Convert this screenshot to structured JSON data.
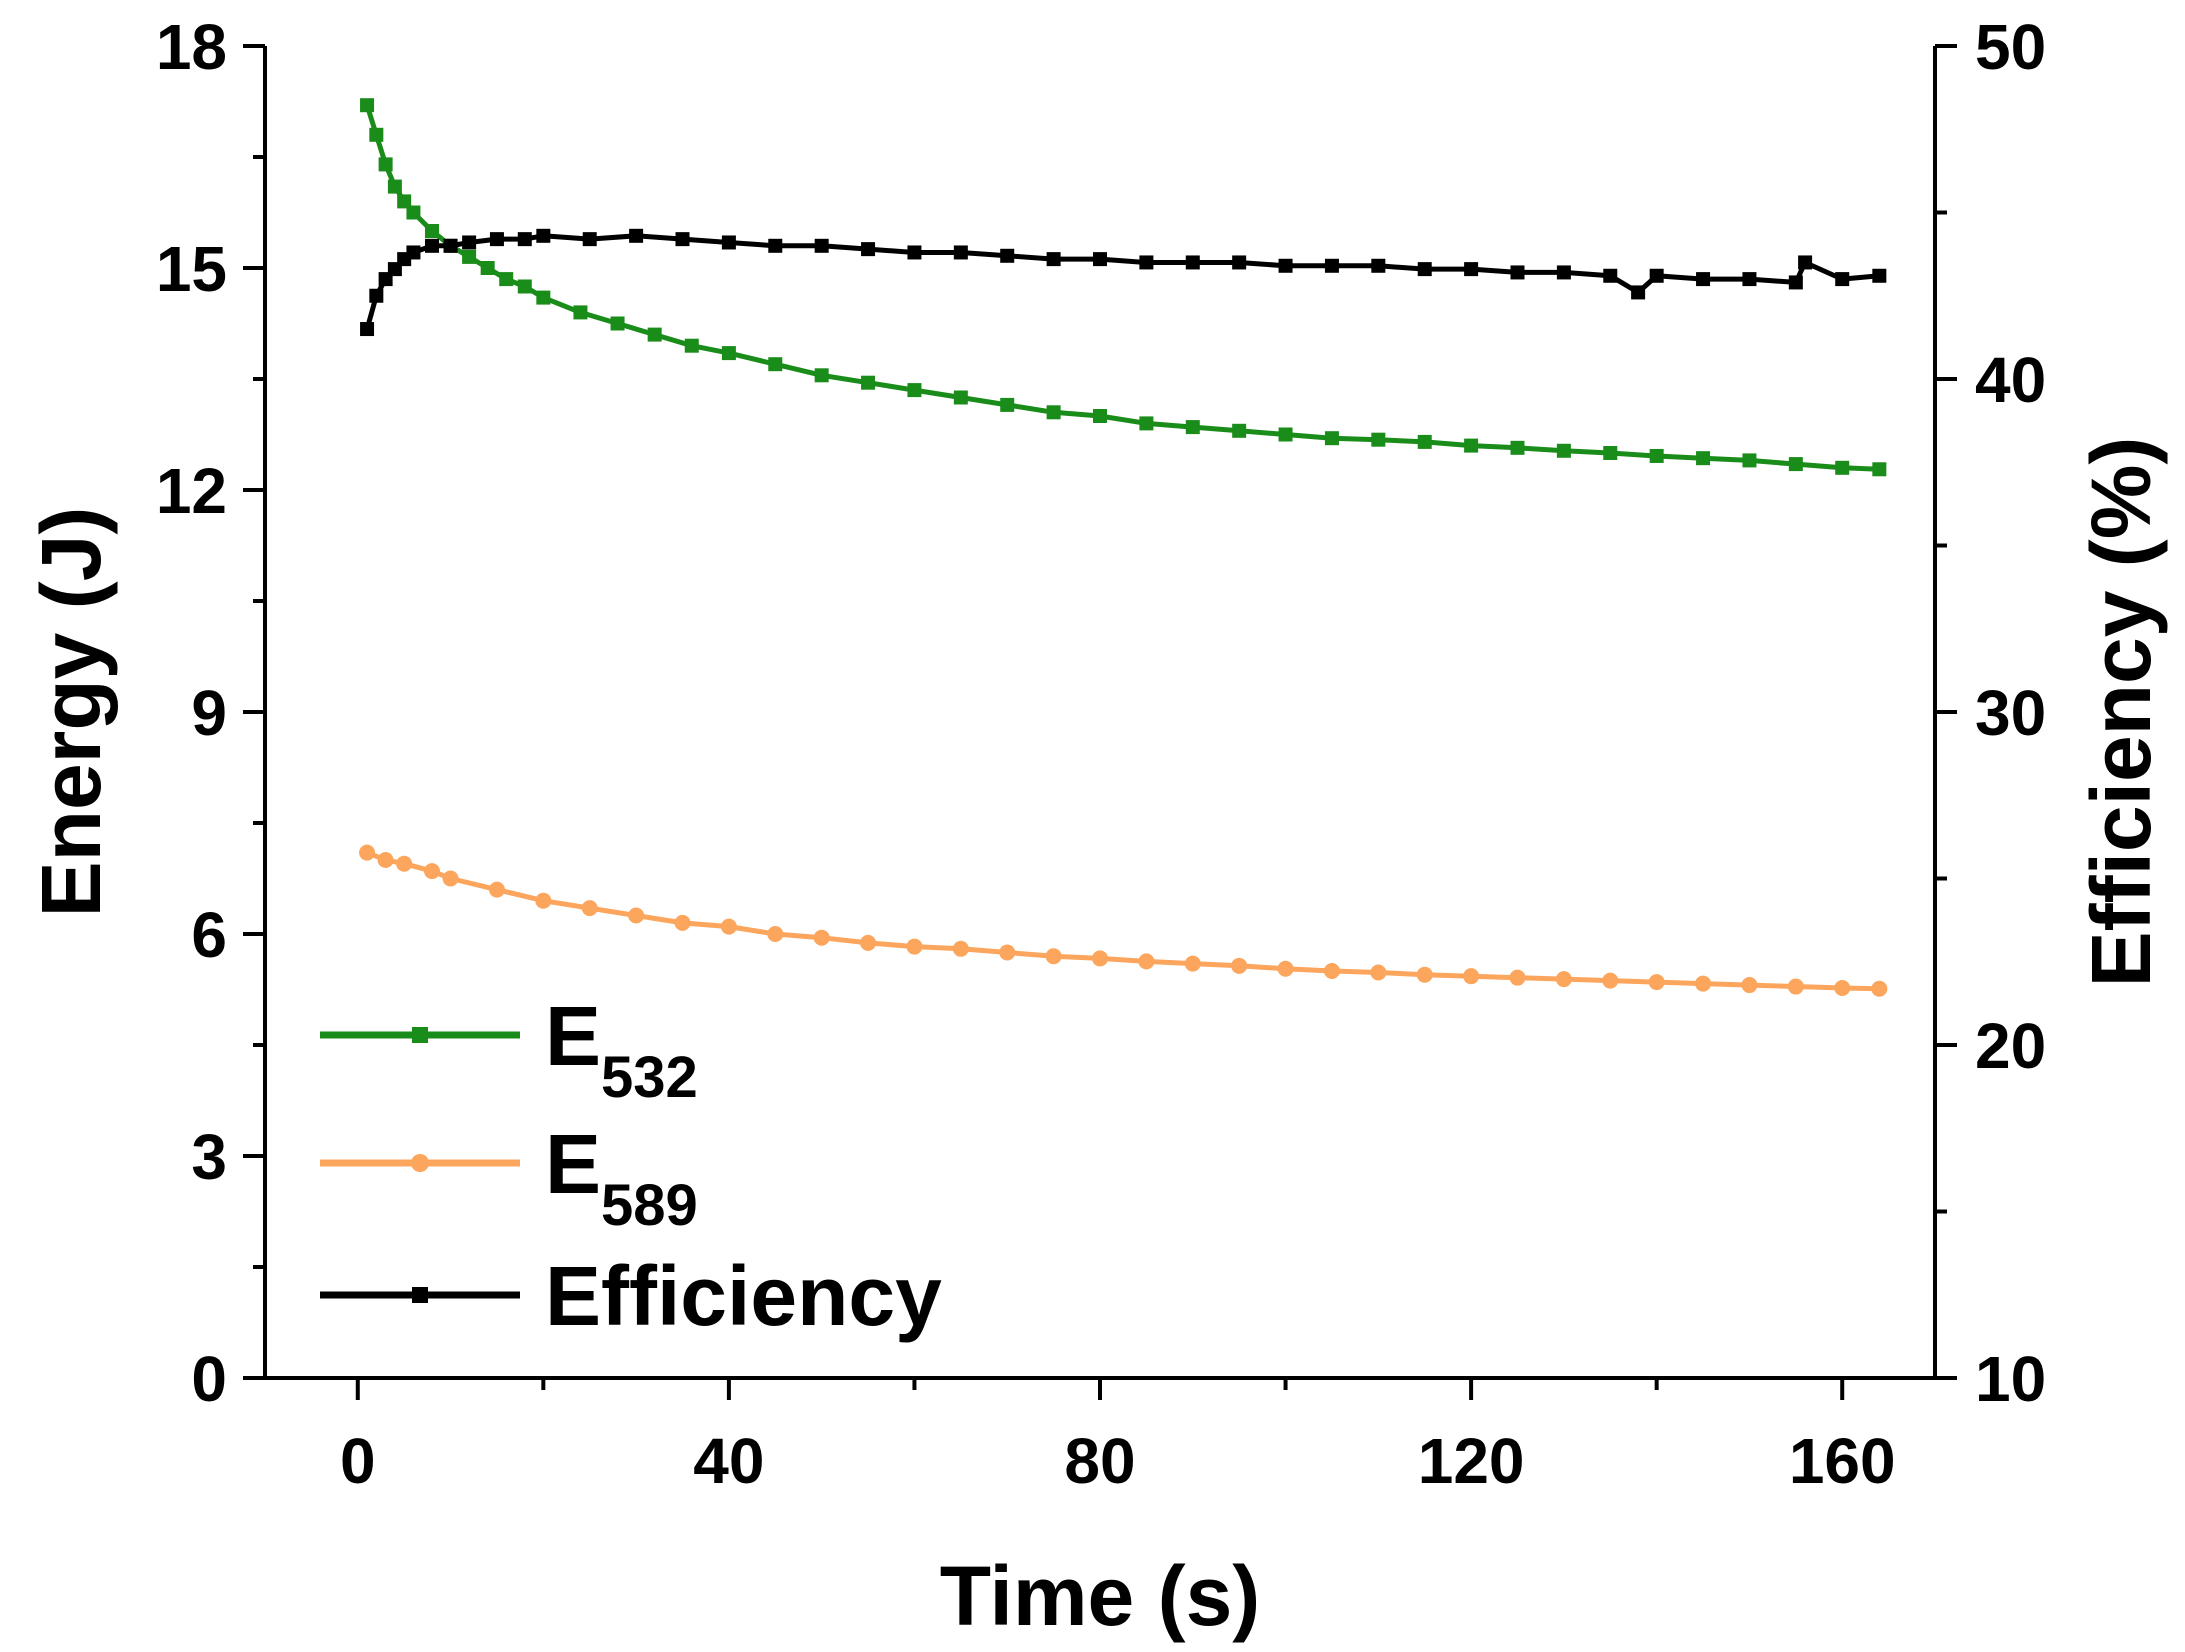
{
  "chart_data": {
    "type": "line",
    "title": "",
    "xlabel": "Time (s)",
    "ylabel_left": "Energy (J)",
    "ylabel_right": "Efficiency (%)",
    "xlim": [
      -10,
      170
    ],
    "ylim_left": [
      0,
      18
    ],
    "ylim_right": [
      10,
      50
    ],
    "xticks": [
      "0",
      "40",
      "80",
      "120",
      "160"
    ],
    "yticks_left": [
      "0",
      "3",
      "6",
      "9",
      "12",
      "15",
      "18"
    ],
    "yticks_right": [
      "10",
      "20",
      "30",
      "40",
      "50"
    ],
    "legend_position": "bottom-left",
    "series": [
      {
        "name": "E532",
        "legend_main": "E",
        "legend_sub": "532",
        "axis": "left",
        "color": "#1a8c1a",
        "marker": "square",
        "x": [
          1,
          2,
          3,
          4,
          5,
          6,
          8,
          10,
          12,
          14,
          16,
          18,
          20,
          24,
          28,
          32,
          36,
          40,
          45,
          50,
          55,
          60,
          65,
          70,
          75,
          80,
          85,
          90,
          95,
          100,
          105,
          110,
          115,
          120,
          125,
          130,
          135,
          140,
          145,
          150,
          155,
          160,
          164
        ],
        "y": [
          17.2,
          16.8,
          16.4,
          16.1,
          15.9,
          15.75,
          15.5,
          15.3,
          15.15,
          15.0,
          14.85,
          14.75,
          14.6,
          14.4,
          14.25,
          14.1,
          13.95,
          13.85,
          13.7,
          13.55,
          13.45,
          13.35,
          13.25,
          13.15,
          13.05,
          13.0,
          12.9,
          12.85,
          12.8,
          12.75,
          12.7,
          12.68,
          12.65,
          12.6,
          12.57,
          12.53,
          12.5,
          12.46,
          12.43,
          12.4,
          12.35,
          12.3,
          12.28
        ]
      },
      {
        "name": "E589",
        "legend_main": "E",
        "legend_sub": "589",
        "axis": "left",
        "color": "#fca55d",
        "marker": "circle",
        "x": [
          1,
          3,
          5,
          8,
          10,
          15,
          20,
          25,
          30,
          35,
          40,
          45,
          50,
          55,
          60,
          65,
          70,
          75,
          80,
          85,
          90,
          95,
          100,
          105,
          110,
          115,
          120,
          125,
          130,
          135,
          140,
          145,
          150,
          155,
          160,
          164
        ],
        "y": [
          7.1,
          7.0,
          6.95,
          6.85,
          6.75,
          6.6,
          6.45,
          6.35,
          6.25,
          6.15,
          6.1,
          6.0,
          5.95,
          5.88,
          5.83,
          5.8,
          5.75,
          5.7,
          5.67,
          5.63,
          5.6,
          5.57,
          5.53,
          5.5,
          5.48,
          5.45,
          5.43,
          5.41,
          5.39,
          5.37,
          5.35,
          5.33,
          5.31,
          5.29,
          5.27,
          5.26
        ]
      },
      {
        "name": "Efficiency",
        "legend_main": "Efficiency",
        "legend_sub": "",
        "axis": "right",
        "color": "#000000",
        "marker": "square",
        "x": [
          1,
          2,
          3,
          4,
          5,
          6,
          8,
          10,
          12,
          15,
          18,
          20,
          25,
          30,
          35,
          40,
          45,
          50,
          55,
          60,
          65,
          70,
          75,
          80,
          85,
          90,
          95,
          100,
          105,
          110,
          115,
          120,
          125,
          130,
          135,
          138,
          140,
          145,
          150,
          155,
          156,
          160,
          164
        ],
        "y": [
          41.5,
          42.5,
          43.0,
          43.3,
          43.6,
          43.8,
          44.0,
          44.0,
          44.1,
          44.2,
          44.2,
          44.3,
          44.2,
          44.3,
          44.2,
          44.1,
          44.0,
          44.0,
          43.9,
          43.8,
          43.8,
          43.7,
          43.6,
          43.6,
          43.5,
          43.5,
          43.5,
          43.4,
          43.4,
          43.4,
          43.3,
          43.3,
          43.2,
          43.2,
          43.1,
          42.6,
          43.1,
          43.0,
          43.0,
          42.9,
          43.5,
          43.0,
          43.1
        ]
      }
    ]
  }
}
